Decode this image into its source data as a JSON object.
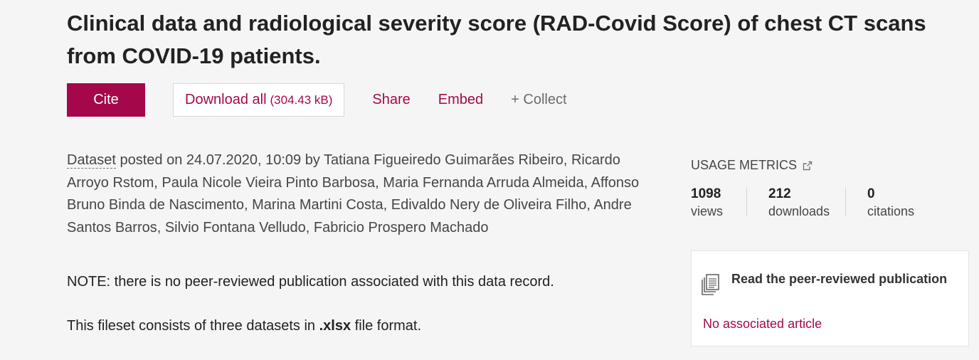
{
  "title": "Clinical data and radiological severity score (RAD-Covid Score) of chest CT scans from COVID-19 patients.",
  "actions": {
    "cite_label": "Cite",
    "download_label": "Download all",
    "download_size": "(304.43 kB)",
    "share_label": "Share",
    "embed_label": "Embed",
    "collect_label": "+ Collect"
  },
  "meta": {
    "item_type": "Dataset",
    "posted_text": " posted on 24.07.2020, 10:09 by Tatiana Figueiredo Guimarães Ribeiro, Ricardo Arroyo Rstom, Paula Nicole Vieira Pinto Barbosa, Maria Fernanda Arruda Almeida, Affonso Bruno Binda de Nascimento, Marina Martini Costa, Edivaldo Nery de Oliveira Filho, Andre Santos Barros, Silvio Fontana Velludo, Fabricio Prospero Machado"
  },
  "description": {
    "note": "NOTE: there is no peer-reviewed publication associated with this data record.",
    "fileset_prefix": "This fileset consists of three datasets in ",
    "fileset_format": ".xlsx",
    "fileset_suffix": " file format."
  },
  "usage": {
    "heading": "USAGE METRICS",
    "icon": "external-link-icon",
    "metrics": [
      {
        "value": "1098",
        "label": "views"
      },
      {
        "value": "212",
        "label": "downloads"
      },
      {
        "value": "0",
        "label": "citations"
      }
    ]
  },
  "publication": {
    "icon": "document-stack-icon",
    "title": "Read the peer-reviewed publication",
    "status": "No associated article"
  },
  "colors": {
    "accent": "#a4084b",
    "background": "#f5f5f5"
  }
}
